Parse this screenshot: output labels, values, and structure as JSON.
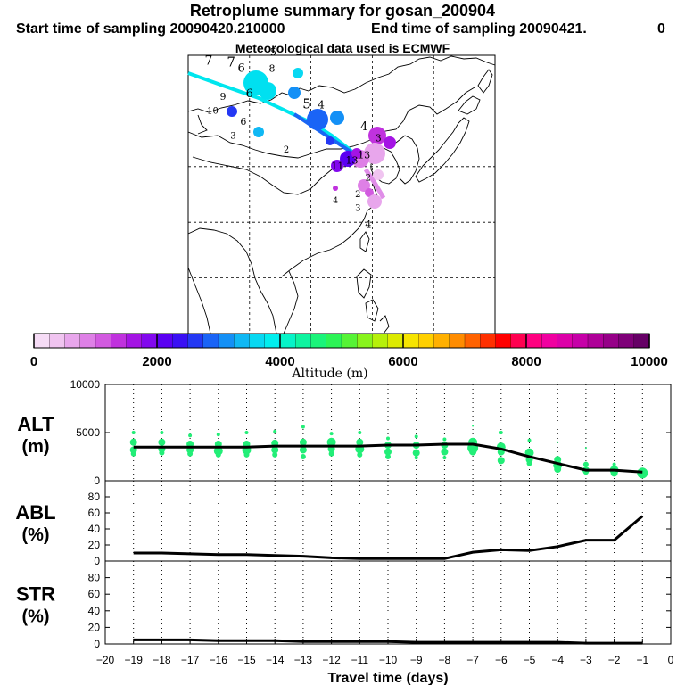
{
  "title": "Retroplume summary for gosan_200904",
  "start_label": "Start time of sampling 20090420.210000",
  "end_label": "End time of sampling 20090421.",
  "end_suffix": "0",
  "met_label": "Meteorological data used is ECMWF",
  "colors": {
    "line": "#000000",
    "alt_dots": "#22ee77",
    "grid": "#000000"
  },
  "colorbar": {
    "label": "Altitude (m)",
    "tick_labels": [
      "0",
      "2000",
      "4000",
      "6000",
      "8000",
      "10000"
    ],
    "colors": [
      "#f6dcf6",
      "#f0c4f0",
      "#e8a6ec",
      "#de80e6",
      "#d25ae0",
      "#c032de",
      "#a414e4",
      "#8208ee",
      "#5a00f2",
      "#3a10f4",
      "#2438f4",
      "#1a64f6",
      "#1490f6",
      "#10b8f4",
      "#08d8f2",
      "#00eeee",
      "#06f4c8",
      "#0ef4a0",
      "#1af47a",
      "#2cf456",
      "#56f436",
      "#88f41c",
      "#b6f00a",
      "#dcea00",
      "#f6e400",
      "#ffd000",
      "#ffb000",
      "#ff8c00",
      "#ff6200",
      "#ff3000",
      "#ff0000",
      "#ff0050",
      "#ff0080",
      "#f000a0",
      "#dc00a8",
      "#c600a8",
      "#ae0098",
      "#960088",
      "#7e0078",
      "#660066"
    ]
  },
  "map_labels": [
    {
      "text": "7",
      "lon": 80.0,
      "lat": 58.3,
      "size": 14,
      "color": "#000000"
    },
    {
      "text": "7",
      "lon": 85.5,
      "lat": 58.0,
      "size": 15,
      "color": "#000000"
    },
    {
      "text": "6",
      "lon": 88.0,
      "lat": 57.0,
      "size": 13,
      "color": "#000000"
    },
    {
      "text": "5",
      "lon": 95.8,
      "lat": 60.0,
      "size": 11,
      "color": "#000000"
    },
    {
      "text": "8",
      "lon": 95.5,
      "lat": 57.0,
      "size": 11,
      "color": "#000000"
    },
    {
      "text": "9",
      "lon": 83.5,
      "lat": 52.0,
      "size": 11,
      "color": "#000000"
    },
    {
      "text": "6",
      "lon": 90.0,
      "lat": 52.5,
      "size": 13,
      "color": "#000000"
    },
    {
      "text": "5",
      "lon": 104.0,
      "lat": 50.5,
      "size": 15,
      "color": "#000000"
    },
    {
      "text": "4",
      "lon": 107.5,
      "lat": 50.5,
      "size": 12,
      "color": "#000000"
    },
    {
      "text": "10",
      "lon": 81.0,
      "lat": 49.5,
      "size": 10,
      "color": "#000000"
    },
    {
      "text": "6",
      "lon": 88.5,
      "lat": 47.5,
      "size": 11,
      "color": "#000000"
    },
    {
      "text": "3",
      "lon": 86.0,
      "lat": 45.0,
      "size": 10,
      "color": "#000000"
    },
    {
      "text": "2",
      "lon": 99.0,
      "lat": 42.5,
      "size": 10,
      "color": "#000000"
    },
    {
      "text": "4",
      "lon": 118.0,
      "lat": 46.5,
      "size": 13,
      "color": "#000000"
    },
    {
      "text": "3",
      "lon": 121.5,
      "lat": 44.5,
      "size": 11,
      "color": "#000000"
    },
    {
      "text": "13",
      "lon": 118.0,
      "lat": 41.5,
      "size": 11,
      "color": "#000000"
    },
    {
      "text": "13",
      "lon": 115.0,
      "lat": 40.5,
      "size": 11,
      "color": "#000000"
    },
    {
      "text": "11",
      "lon": 111.5,
      "lat": 39.5,
      "size": 11,
      "color": "#000000"
    },
    {
      "text": "2",
      "lon": 119.0,
      "lat": 37.5,
      "size": 10,
      "color": "#000000"
    },
    {
      "text": "4",
      "lon": 111.0,
      "lat": 33.5,
      "size": 9,
      "color": "#000000"
    },
    {
      "text": "2",
      "lon": 116.5,
      "lat": 34.5,
      "size": 10,
      "color": "#000000"
    },
    {
      "text": "3",
      "lon": 116.5,
      "lat": 32.0,
      "size": 10,
      "color": "#000000"
    },
    {
      "text": "4",
      "lon": 119.0,
      "lat": 29.0,
      "size": 11,
      "color": "#000000"
    }
  ],
  "chart_data": [
    {
      "type": "scatter+line",
      "panel": "ALT",
      "ylabel": "ALT",
      "ylabel_unit": "(m)",
      "xlim": [
        -20,
        0
      ],
      "ylim": [
        0,
        10000
      ],
      "yticks": [
        "10000",
        "5000",
        "0"
      ],
      "mean_line": {
        "x": [
          -19,
          -18,
          -17,
          -16,
          -15,
          -14,
          -13,
          -12,
          -11,
          -10,
          -9,
          -8,
          -7,
          -6,
          -5,
          -4,
          -3,
          -2,
          -1
        ],
        "y": [
          3500,
          3500,
          3500,
          3500,
          3500,
          3600,
          3600,
          3600,
          3600,
          3700,
          3700,
          3800,
          3800,
          3300,
          2500,
          1800,
          1100,
          1100,
          900
        ]
      },
      "points": {
        "x": [
          -19,
          -19,
          -19,
          -19,
          -18,
          -18,
          -18,
          -18,
          -17,
          -17,
          -17,
          -17,
          -16,
          -16,
          -16,
          -16,
          -15,
          -15,
          -15,
          -15,
          -14,
          -14,
          -14,
          -14,
          -13,
          -13,
          -13,
          -13,
          -12,
          -12,
          -12,
          -12,
          -11,
          -11,
          -11,
          -11,
          -10,
          -10,
          -10,
          -10,
          -9,
          -9,
          -9,
          -9,
          -8,
          -8,
          -8,
          -8,
          -7,
          -7,
          -7,
          -7,
          -6,
          -6,
          -6,
          -6,
          -5,
          -5,
          -5,
          -5,
          -4,
          -4,
          -4,
          -4,
          -3,
          -3,
          -3,
          -3,
          -2,
          -2,
          -2,
          -1,
          -1
        ],
        "y": [
          5000,
          4000,
          3200,
          2800,
          5000,
          4000,
          3300,
          2900,
          4700,
          3800,
          3200,
          2800,
          4800,
          3800,
          3100,
          2700,
          5000,
          3800,
          3200,
          2700,
          5100,
          3900,
          3200,
          2700,
          5600,
          4000,
          3200,
          2500,
          4900,
          4000,
          3300,
          2800,
          5000,
          4000,
          3300,
          2700,
          4400,
          3700,
          3000,
          2500,
          4600,
          3700,
          2900,
          2400,
          4300,
          3700,
          3000,
          2400,
          5700,
          4000,
          3400,
          3000,
          5000,
          3500,
          3000,
          2100,
          4200,
          2900,
          2200,
          1800,
          4000,
          2200,
          1600,
          1200,
          3400,
          1700,
          1100,
          900,
          1700,
          1100,
          800,
          1000,
          800
        ],
        "r": [
          2,
          4,
          4,
          3,
          2,
          4,
          4,
          3,
          2,
          4,
          4,
          3,
          2,
          4,
          5,
          3,
          2,
          4,
          5,
          3,
          2,
          4,
          4,
          3,
          2,
          4,
          4,
          3,
          2,
          5,
          4,
          3,
          2,
          4,
          5,
          3,
          2,
          4,
          4,
          3,
          2,
          4,
          4,
          2,
          2,
          4,
          4,
          2,
          1,
          5,
          6,
          4,
          2,
          5,
          4,
          4,
          2,
          5,
          4,
          3,
          1,
          4,
          5,
          4,
          1,
          3,
          4,
          3,
          2,
          5,
          4,
          4,
          6
        ]
      }
    },
    {
      "type": "line",
      "panel": "ABL",
      "ylabel": "ABL",
      "ylabel_unit": "(%)",
      "xlim": [
        -20,
        0
      ],
      "ylim": [
        0,
        100
      ],
      "yticks": [
        "80",
        "60",
        "40",
        "20",
        "0"
      ],
      "x": [
        -19,
        -18,
        -17,
        -16,
        -15,
        -14,
        -13,
        -12,
        -11,
        -10,
        -9,
        -8,
        -7,
        -6,
        -5,
        -4,
        -3,
        -2,
        -1
      ],
      "y": [
        10,
        10,
        9,
        8,
        8,
        7,
        6,
        4,
        3,
        3,
        3,
        3,
        11,
        14,
        13,
        18,
        26,
        26,
        56
      ]
    },
    {
      "type": "line",
      "panel": "STR",
      "ylabel": "STR",
      "ylabel_unit": "(%)",
      "xlim": [
        -20,
        0
      ],
      "ylim": [
        0,
        100
      ],
      "yticks": [
        "80",
        "60",
        "40",
        "20",
        "0"
      ],
      "x": [
        -19,
        -18,
        -17,
        -16,
        -15,
        -14,
        -13,
        -12,
        -11,
        -10,
        -9,
        -8,
        -7,
        -6,
        -5,
        -4,
        -3,
        -2,
        -1
      ],
      "y": [
        5,
        5,
        5,
        4,
        4,
        4,
        3,
        3,
        3,
        3,
        2,
        2,
        2,
        2,
        2,
        2,
        1,
        1,
        1
      ],
      "xlabel": "Travel time (days)",
      "xtick_labels": [
        "−20",
        "−19",
        "−18",
        "−17",
        "−16",
        "−15",
        "−14",
        "−13",
        "−12",
        "−11",
        "−10",
        "−9",
        "−8",
        "−7",
        "−6",
        "−5",
        "−4",
        "−3",
        "−2",
        "−1",
        "0"
      ]
    }
  ]
}
